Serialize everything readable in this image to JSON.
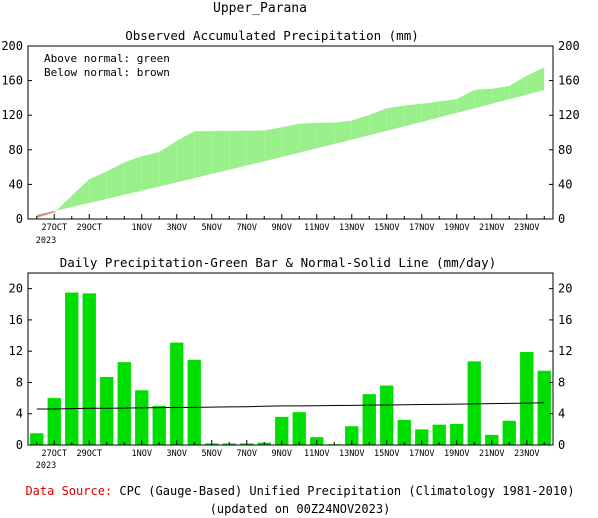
{
  "page_title": "Upper_Parana",
  "footer": {
    "source_label": "Data Source:",
    "source_text": "CPC (Gauge-Based) Unified Precipitation (Climatology 1981-2010)",
    "updated": "(updated on 00Z24NOV2023)"
  },
  "colors": {
    "above_normal": "#99f08a",
    "below_normal": "#c8907a",
    "bar": "#00dd00",
    "source_label": "#dd0000"
  },
  "chart_data": [
    {
      "type": "area",
      "title": "Observed Accumulated Precipitation (mm)",
      "legend": [
        "Above normal: green",
        "Below normal: brown"
      ],
      "legend_position": "top-left",
      "x_ticks": [
        "27OCT",
        "29OCT",
        "1NOV",
        "3NOV",
        "5NOV",
        "7NOV",
        "9NOV",
        "11NOV",
        "13NOV",
        "15NOV",
        "17NOV",
        "19NOV",
        "21NOV",
        "23NOV"
      ],
      "x_year_label": "2023",
      "ylim": [
        0,
        200
      ],
      "y_ticks": [
        0,
        40,
        80,
        120,
        160,
        200
      ],
      "days": [
        "26OCT",
        "27OCT",
        "28OCT",
        "29OCT",
        "30OCT",
        "31OCT",
        "1NOV",
        "2NOV",
        "3NOV",
        "4NOV",
        "5NOV",
        "6NOV",
        "7NOV",
        "8NOV",
        "9NOV",
        "10NOV",
        "11NOV",
        "12NOV",
        "13NOV",
        "14NOV",
        "15NOV",
        "16NOV",
        "17NOV",
        "18NOV",
        "19NOV",
        "20NOV",
        "21NOV",
        "22NOV",
        "23NOV",
        "24NOV"
      ],
      "series": [
        {
          "name": "Observed",
          "values": [
            1.5,
            7.5,
            27,
            46,
            55,
            65.5,
            72.5,
            77.5,
            90.5,
            101.5,
            101.7,
            101.9,
            102.1,
            102.3,
            106,
            110.3,
            111.3,
            111.4,
            113.8,
            120.4,
            128,
            131.2,
            133.2,
            135.8,
            138.6,
            149.3,
            150.6,
            153.8,
            165.7,
            175.3
          ]
        },
        {
          "name": "Normal",
          "values": [
            4.6,
            9.2,
            13.9,
            18.6,
            23.3,
            28.0,
            32.8,
            37.6,
            42.4,
            47.2,
            52.1,
            56.9,
            61.8,
            66.8,
            71.8,
            76.8,
            81.8,
            86.8,
            91.8,
            96.9,
            102.0,
            107.1,
            112.3,
            117.5,
            122.7,
            127.9,
            133.2,
            138.5,
            143.8,
            149.1
          ]
        }
      ]
    },
    {
      "type": "bar",
      "title": "Daily Precipitation-Green Bar & Normal-Solid Line (mm/day)",
      "x_ticks": [
        "27OCT",
        "29OCT",
        "1NOV",
        "3NOV",
        "5NOV",
        "7NOV",
        "9NOV",
        "11NOV",
        "13NOV",
        "15NOV",
        "17NOV",
        "19NOV",
        "21NOV",
        "23NOV"
      ],
      "x_year_label": "2023",
      "ylim": [
        0,
        22
      ],
      "y_ticks": [
        0,
        4,
        8,
        12,
        16,
        20
      ],
      "categories": [
        "26OCT",
        "27OCT",
        "28OCT",
        "29OCT",
        "30OCT",
        "31OCT",
        "1NOV",
        "2NOV",
        "3NOV",
        "4NOV",
        "5NOV",
        "6NOV",
        "7NOV",
        "8NOV",
        "9NOV",
        "10NOV",
        "11NOV",
        "12NOV",
        "13NOV",
        "14NOV",
        "15NOV",
        "16NOV",
        "17NOV",
        "18NOV",
        "19NOV",
        "20NOV",
        "21NOV",
        "22NOV",
        "23NOV",
        "24NOV"
      ],
      "series": [
        {
          "name": "Daily",
          "values": [
            1.5,
            6.0,
            19.5,
            19.4,
            8.7,
            10.6,
            7.0,
            5.0,
            13.1,
            10.9,
            0.2,
            0.2,
            0.2,
            0.3,
            3.6,
            4.2,
            1.0,
            0.1,
            2.4,
            6.5,
            7.6,
            3.2,
            2.0,
            2.6,
            2.7,
            10.7,
            1.3,
            3.1,
            11.9,
            9.5
          ]
        },
        {
          "name": "Normal",
          "values": [
            4.6,
            4.6,
            4.65,
            4.7,
            4.7,
            4.72,
            4.75,
            4.78,
            4.8,
            4.82,
            4.85,
            4.88,
            4.9,
            4.95,
            5.0,
            5.0,
            5.02,
            5.05,
            5.07,
            5.1,
            5.12,
            5.15,
            5.18,
            5.2,
            5.23,
            5.26,
            5.29,
            5.32,
            5.36,
            5.4
          ]
        }
      ]
    }
  ]
}
